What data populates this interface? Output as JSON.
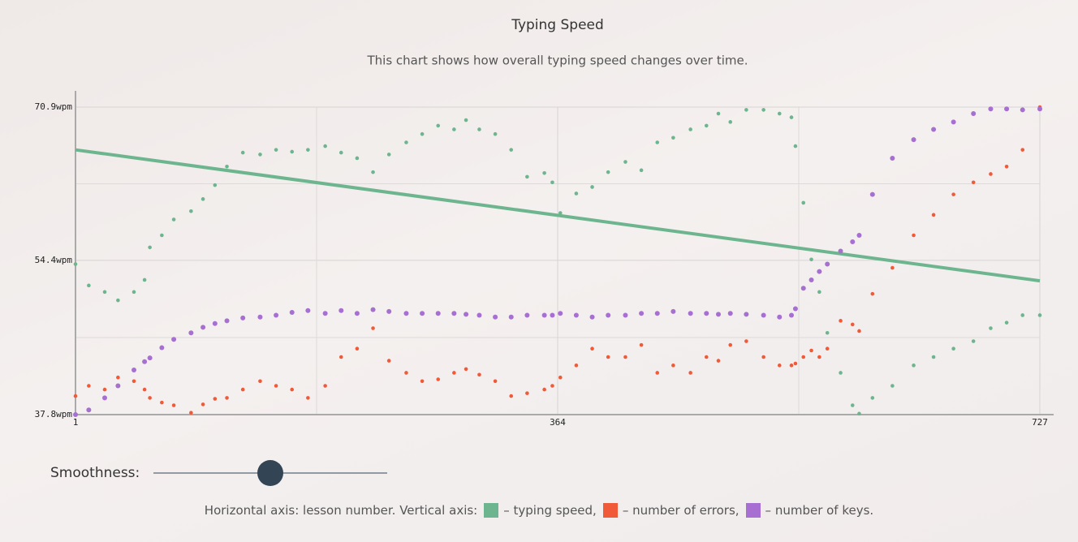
{
  "chart_data": {
    "type": "scatter",
    "title": "Typing Speed",
    "subtitle": "This chart shows how overall typing speed changes over time.",
    "x": [
      1,
      11,
      23,
      33,
      45,
      53,
      57,
      66,
      75,
      88,
      97,
      106,
      115,
      127,
      140,
      152,
      164,
      176,
      189,
      201,
      213,
      225,
      237,
      250,
      262,
      274,
      286,
      295,
      305,
      317,
      329,
      341,
      354,
      360,
      366,
      378,
      390,
      402,
      415,
      427,
      439,
      451,
      464,
      476,
      485,
      494,
      506,
      519,
      531,
      540,
      543,
      549,
      555,
      561,
      567,
      577,
      586,
      591,
      601,
      616,
      632,
      647,
      662,
      677,
      690,
      702,
      714,
      727
    ],
    "series": [
      {
        "name": "– typing speed,",
        "color": "#6db58e",
        "values": [
          54.0,
          51.7,
          51.0,
          50.1,
          51.0,
          52.3,
          55.8,
          57.1,
          58.8,
          59.7,
          61.0,
          62.5,
          64.5,
          66.0,
          65.8,
          66.3,
          66.1,
          66.3,
          66.7,
          66.0,
          65.4,
          63.9,
          65.8,
          67.1,
          68.0,
          68.9,
          68.5,
          69.5,
          68.5,
          68.0,
          66.3,
          63.4,
          63.8,
          62.8,
          59.5,
          61.6,
          62.3,
          63.9,
          65.0,
          64.1,
          67.1,
          67.6,
          68.5,
          68.9,
          70.2,
          69.3,
          70.6,
          70.6,
          70.2,
          69.8,
          66.7,
          60.6,
          54.5,
          51.0,
          46.6,
          42.3,
          38.8,
          37.9,
          39.6,
          40.9,
          43.1,
          44.0,
          44.9,
          45.7,
          47.1,
          47.7,
          48.5,
          48.5
        ]
      },
      {
        "name": "– number of errors,",
        "color": "#f05a38",
        "values": [
          39.8,
          40.9,
          40.5,
          41.8,
          41.4,
          40.5,
          39.6,
          39.1,
          38.8,
          38.0,
          38.9,
          39.5,
          39.6,
          40.5,
          41.4,
          40.9,
          40.5,
          39.6,
          40.9,
          44.0,
          44.9,
          47.1,
          43.6,
          42.3,
          41.4,
          41.6,
          42.3,
          42.7,
          42.1,
          41.4,
          39.8,
          40.1,
          40.5,
          40.9,
          41.8,
          43.1,
          44.9,
          44.0,
          44.0,
          45.3,
          42.3,
          43.1,
          42.3,
          44.0,
          43.6,
          45.3,
          45.7,
          44.0,
          43.1,
          43.1,
          43.3,
          44.0,
          44.7,
          44.0,
          44.9,
          47.9,
          47.5,
          46.8,
          50.8,
          53.6,
          57.1,
          59.3,
          61.5,
          62.8,
          63.7,
          64.5,
          66.3,
          70.9
        ]
      },
      {
        "name": "– number of keys.",
        "color": "#a66fd1",
        "values": [
          37.8,
          38.3,
          39.6,
          40.9,
          42.6,
          43.5,
          43.9,
          45.0,
          45.9,
          46.6,
          47.2,
          47.6,
          47.9,
          48.2,
          48.3,
          48.5,
          48.8,
          49.0,
          48.7,
          49.0,
          48.7,
          49.1,
          48.9,
          48.7,
          48.7,
          48.7,
          48.7,
          48.6,
          48.5,
          48.3,
          48.3,
          48.5,
          48.5,
          48.5,
          48.7,
          48.5,
          48.3,
          48.5,
          48.5,
          48.7,
          48.7,
          48.9,
          48.7,
          48.7,
          48.6,
          48.7,
          48.6,
          48.5,
          48.3,
          48.5,
          49.2,
          51.4,
          52.3,
          53.2,
          54.0,
          55.4,
          56.4,
          57.1,
          61.5,
          65.4,
          67.4,
          68.5,
          69.3,
          70.2,
          70.7,
          70.7,
          70.6,
          70.7
        ]
      }
    ],
    "trendline": {
      "color": "#6db58e",
      "x": [
        1,
        727
      ],
      "values": [
        66.3,
        52.2
      ]
    },
    "xlim": [
      1,
      727
    ],
    "xticks": [
      1,
      364,
      727
    ],
    "ylim": [
      37.8,
      70.9
    ],
    "yticks": [
      {
        "value": 37.8,
        "label": "37.8wpm"
      },
      {
        "value": 54.4,
        "label": "54.4wpm"
      },
      {
        "value": 70.9,
        "label": "70.9wpm"
      }
    ],
    "grid": true,
    "slider_label": "Smoothness:",
    "axes_note": "Horizontal axis: lesson number. Vertical axis:"
  }
}
